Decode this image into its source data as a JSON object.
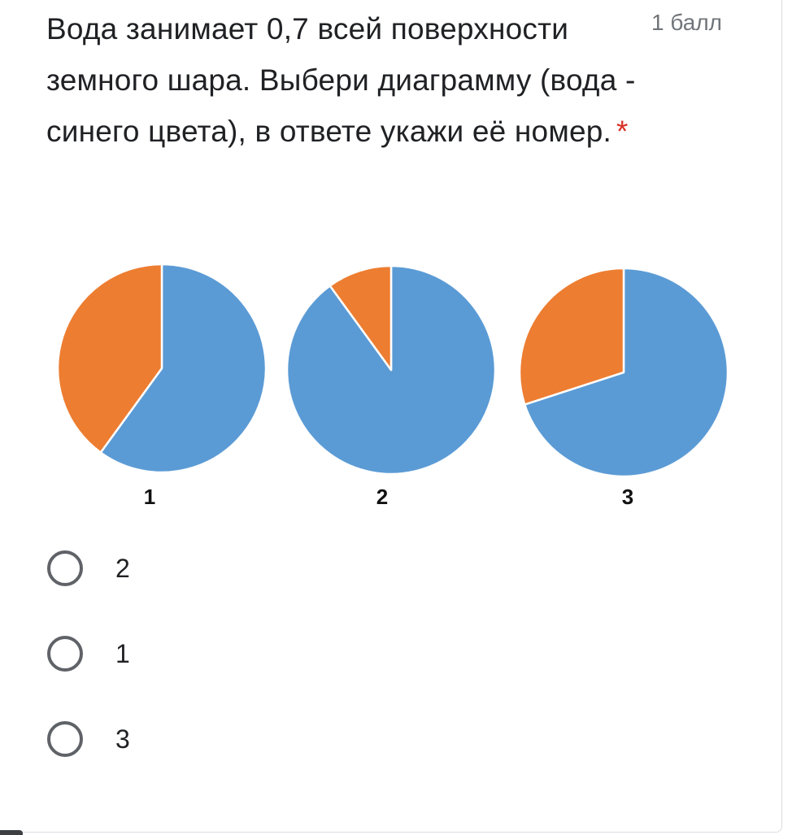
{
  "question": {
    "title": "Вода занимает 0,7 всей поверхности земного шара. Выбери диаграмму (вода - синего цвета), в ответе укажи её номер.",
    "required_mark": "*",
    "points": "1 балл"
  },
  "chart_data": [
    {
      "type": "pie",
      "label": "1",
      "slices": [
        {
          "color": "#5b9bd5",
          "value": 0.6
        },
        {
          "color": "#ed7d31",
          "value": 0.4
        }
      ]
    },
    {
      "type": "pie",
      "label": "2",
      "slices": [
        {
          "color": "#5b9bd5",
          "value": 0.9
        },
        {
          "color": "#ed7d31",
          "value": 0.1
        }
      ]
    },
    {
      "type": "pie",
      "label": "3",
      "slices": [
        {
          "color": "#5b9bd5",
          "value": 0.7
        },
        {
          "color": "#ed7d31",
          "value": 0.3
        }
      ]
    }
  ],
  "options": [
    {
      "label": "2"
    },
    {
      "label": "1"
    },
    {
      "label": "3"
    }
  ],
  "colors": {
    "water": "#5b9bd5",
    "land": "#ed7d31",
    "required": "#d93025"
  }
}
